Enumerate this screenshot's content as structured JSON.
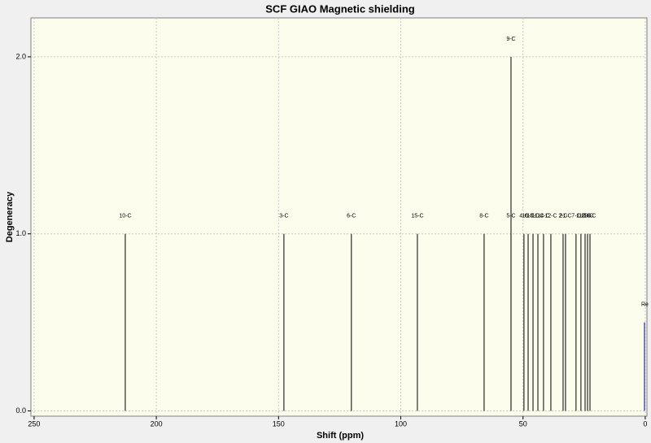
{
  "chart_data": {
    "type": "stick",
    "title": "SCF GIAO Magnetic shielding",
    "x_label": "Shift (ppm)",
    "y_label": "Degeneracy",
    "xlim": [
      251.3,
      -0.7
    ],
    "ylim": [
      -0.03,
      2.22
    ],
    "xticks": [
      250,
      200,
      150,
      100,
      50,
      0
    ],
    "yticks": [
      {
        "value": 0,
        "label": "0.0"
      },
      {
        "value": 1,
        "label": "1.0"
      },
      {
        "value": 2,
        "label": "2.0"
      }
    ],
    "grid": true,
    "color": "#000000",
    "labels": [
      "10-C",
      "3-C",
      "6-C",
      "15-C",
      "8-C",
      "9-C",
      "5-C",
      "4-C",
      "16-C",
      "13-C",
      "11-C",
      "14-C",
      "12-C",
      "2-C",
      "21-C",
      "7-C",
      "1-C",
      "17-C",
      "20-C",
      "18-C"
    ],
    "x": [
      212.7,
      147.8,
      120.2,
      93.2,
      65.9,
      54.9,
      54.9,
      49.6,
      47.9,
      45.9,
      43.9,
      41.6,
      38.6,
      33.6,
      32.6,
      28.3,
      26.3,
      24.6,
      23.6,
      22.6
    ],
    "values": [
      1,
      1,
      1,
      1,
      1,
      2,
      1,
      1,
      1,
      1,
      1,
      1,
      1,
      1,
      1,
      1,
      1,
      1,
      1,
      1
    ],
    "reference": {
      "label": "Re",
      "x": 0.3,
      "value": 0.5,
      "color": "#5050e0"
    }
  }
}
